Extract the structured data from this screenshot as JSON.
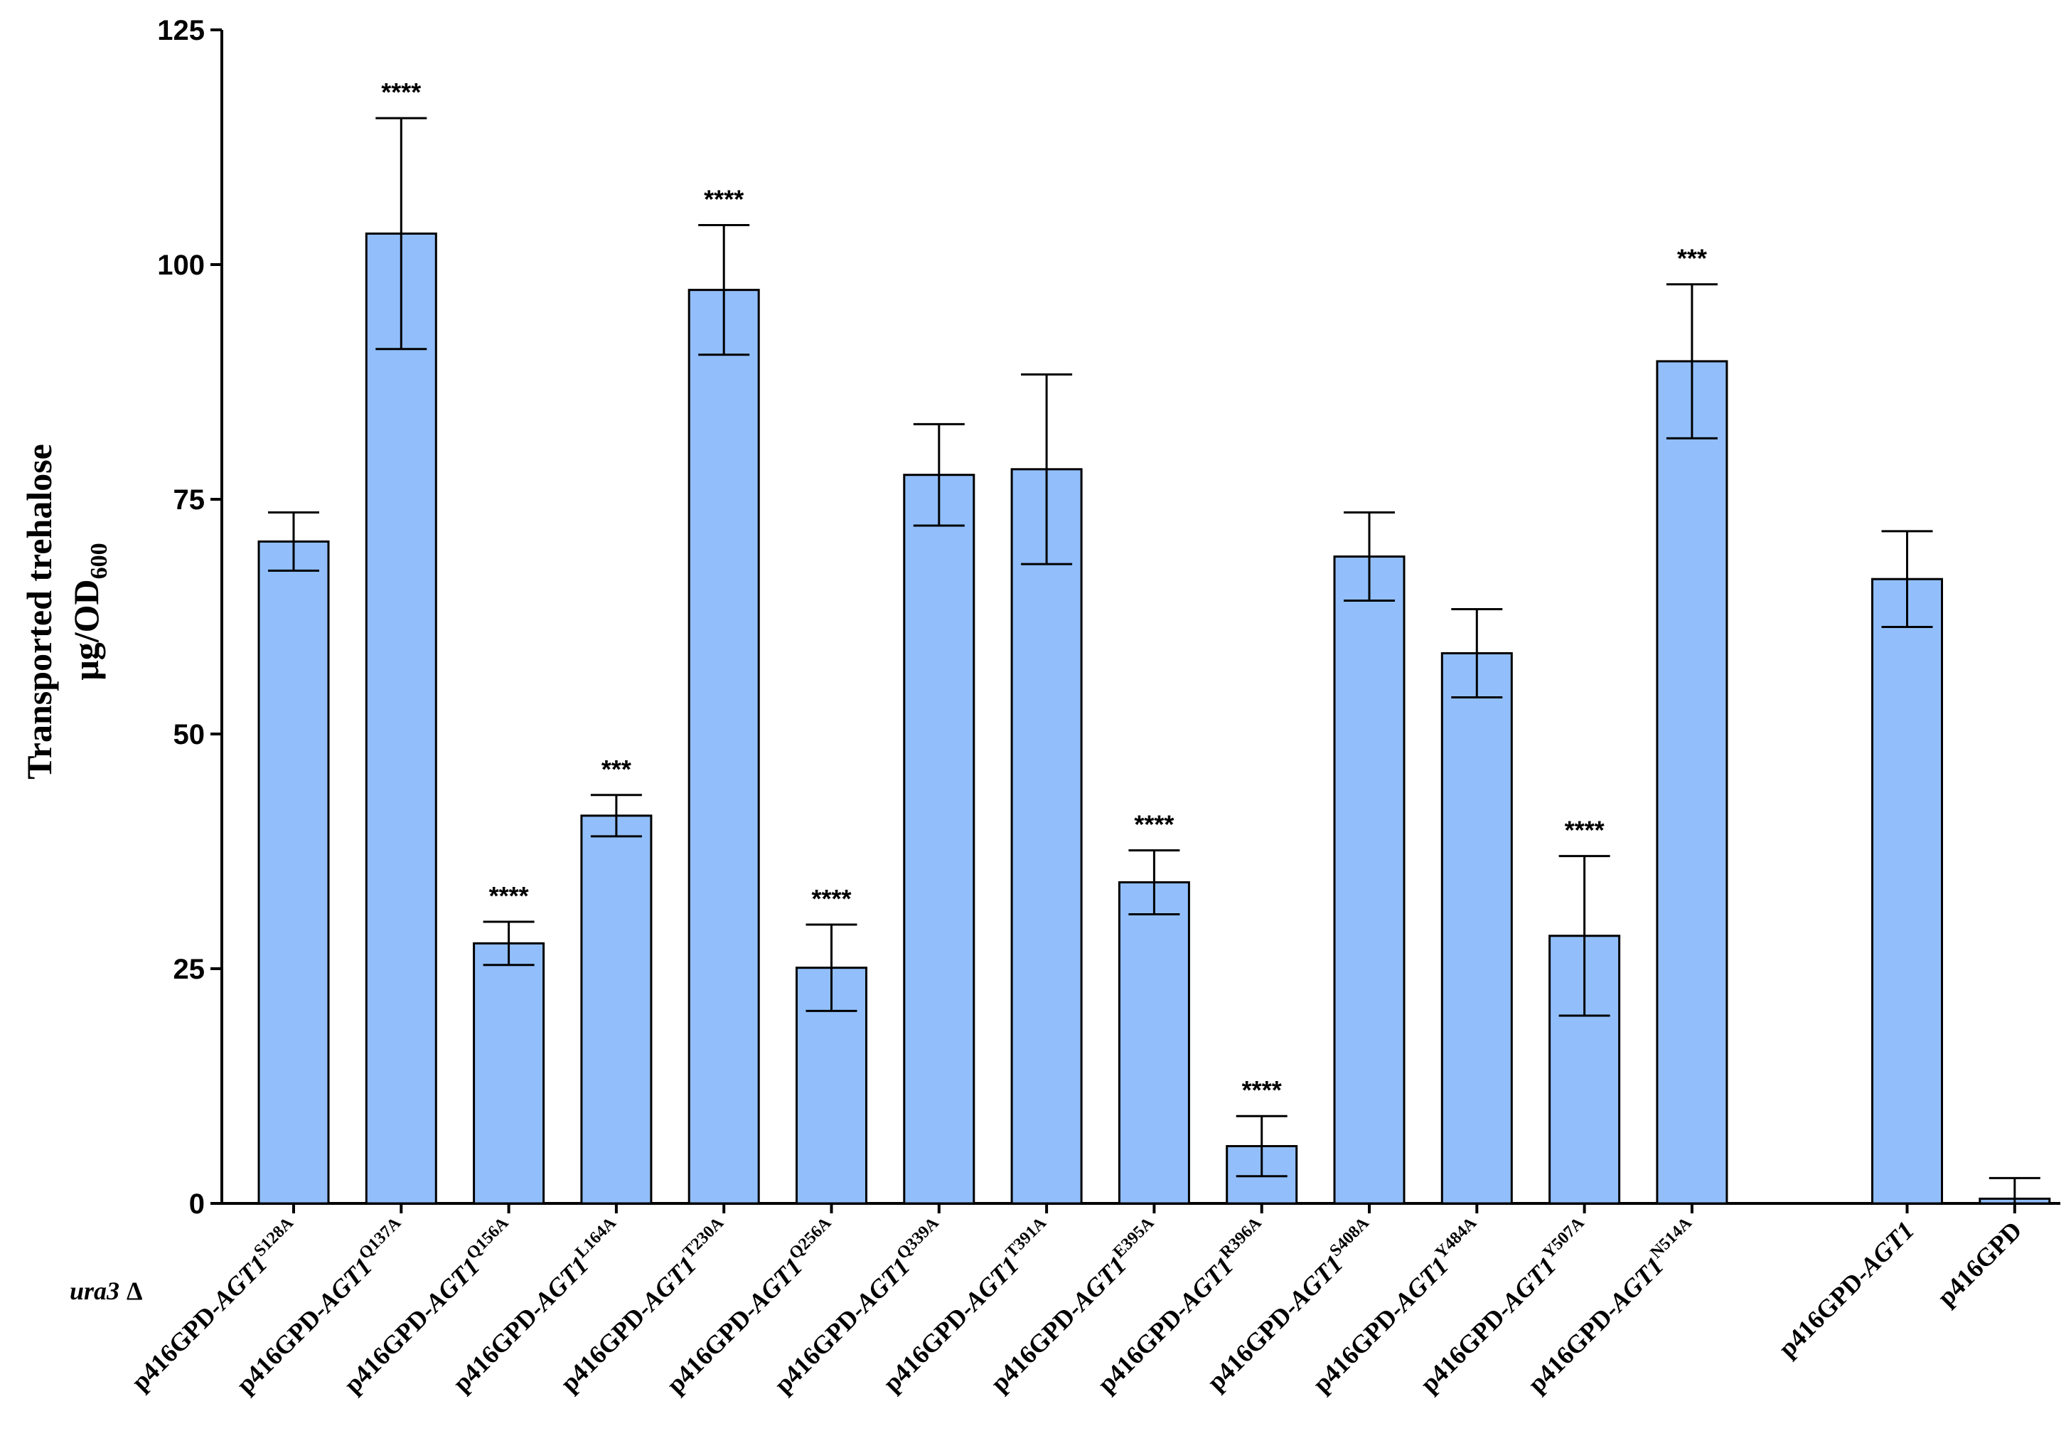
{
  "chart_data": {
    "type": "bar",
    "ylabel_line1": "Transported trehalose",
    "ylabel_line2_main": "μg/OD",
    "ylabel_line2_sub": "600",
    "strain_label_italic": "ura3",
    "strain_label_symbol": "Δ",
    "ylim": [
      0,
      125
    ],
    "yticks": [
      0,
      25,
      50,
      75,
      100,
      125
    ],
    "bar_color": "#92bffb",
    "bar_edge_color": "#000000",
    "categories": [
      {
        "prefix": "p416GPD-",
        "gene": "AGT1",
        "mutation": "S128A"
      },
      {
        "prefix": "p416GPD-",
        "gene": "AGT1",
        "mutation": "Q137A"
      },
      {
        "prefix": "p416GPD-",
        "gene": "AGT1",
        "mutation": "Q156A"
      },
      {
        "prefix": "p416GPD-",
        "gene": "AGT1",
        "mutation": "L164A"
      },
      {
        "prefix": "p416GPD-",
        "gene": "AGT1",
        "mutation": "T230A"
      },
      {
        "prefix": "p416GPD-",
        "gene": "AGT1",
        "mutation": "Q256A"
      },
      {
        "prefix": "p416GPD-",
        "gene": "AGT1",
        "mutation": "Q339A"
      },
      {
        "prefix": "p416GPD-",
        "gene": "AGT1",
        "mutation": "T391A"
      },
      {
        "prefix": "p416GPD-",
        "gene": "AGT1",
        "mutation": "E395A"
      },
      {
        "prefix": "p416GPD-",
        "gene": "AGT1",
        "mutation": "R396A"
      },
      {
        "prefix": "p416GPD-",
        "gene": "AGT1",
        "mutation": "S408A"
      },
      {
        "prefix": "p416GPD-",
        "gene": "AGT1",
        "mutation": "Y484A"
      },
      {
        "prefix": "p416GPD-",
        "gene": "AGT1",
        "mutation": "Y507A"
      },
      {
        "prefix": "p416GPD-",
        "gene": "AGT1",
        "mutation": "N514A"
      },
      {
        "prefix": "p416GPD-",
        "gene": "AGT1",
        "mutation": ""
      },
      {
        "prefix": "p416GPD",
        "gene": "",
        "mutation": ""
      }
    ],
    "slots": [
      0,
      1,
      2,
      3,
      4,
      5,
      6,
      7,
      8,
      9,
      10,
      11,
      12,
      13,
      15,
      16
    ],
    "values": [
      70.5,
      103.3,
      27.7,
      41.3,
      97.3,
      25.1,
      77.6,
      78.2,
      34.2,
      6.1,
      68.9,
      58.6,
      28.5,
      89.7,
      66.5,
      0.5
    ],
    "errors": [
      3.1,
      12.3,
      2.3,
      2.2,
      6.9,
      4.6,
      5.4,
      10.1,
      3.4,
      3.2,
      4.7,
      4.7,
      8.5,
      8.2,
      5.1,
      2.2
    ],
    "significance": [
      "",
      "****",
      "****",
      "***",
      "****",
      "****",
      "",
      "",
      "****",
      "****",
      "",
      "",
      "****",
      "***",
      "",
      ""
    ]
  }
}
